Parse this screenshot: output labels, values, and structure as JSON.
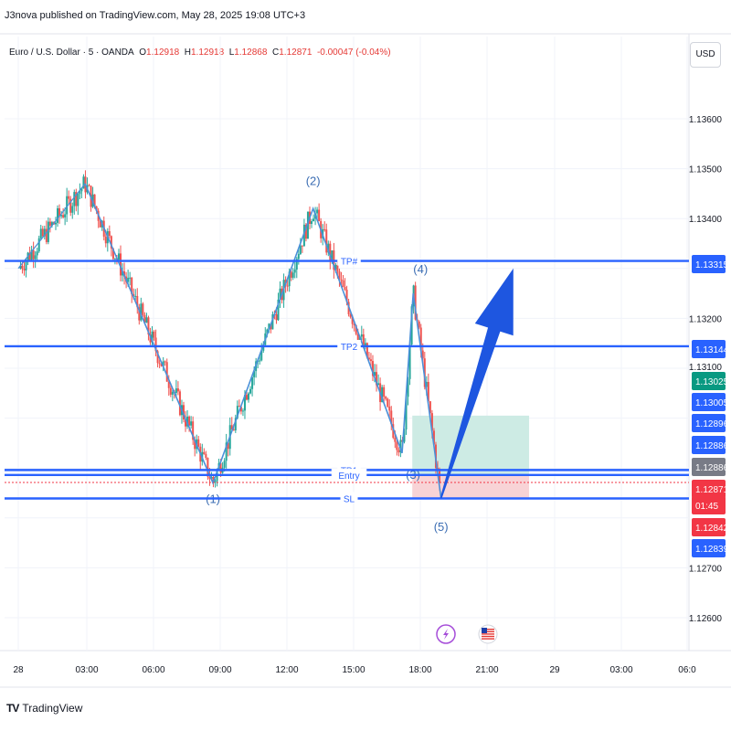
{
  "header": {
    "published_note": "J3nova published on TradingView.com, May 28, 2025 19:08 UTC+3"
  },
  "symbol_bar": {
    "symbol": "Euro / U.S. Dollar · 5 · OANDA",
    "open_label": "O",
    "open": "1.12918",
    "high_label": "H",
    "high": "1.12918",
    "low_label": "L",
    "low": "1.12868",
    "close_label": "C",
    "close": "1.12871",
    "change": "-0.00047 (-0.04%)"
  },
  "currency_button": "USD",
  "colors": {
    "up": "#26a69a",
    "down": "#ef5350",
    "level": "#2962ff",
    "wave": "#4a90d9",
    "arrow": "#1e56e0",
    "target_zone": "#cdebe4",
    "stop_zone": "#f8d3d6"
  },
  "price_axis": {
    "ticks": [
      "1.13600",
      "1.13500",
      "1.13400",
      "1.13200",
      "1.12700",
      "1.12600"
    ],
    "partial_tick": "1.13100",
    "badges": [
      {
        "text": "1.13315",
        "color": "#2962ff"
      },
      {
        "text": "1.13144",
        "color": "#2962ff"
      },
      {
        "text": "1.13025",
        "color": "#089981"
      },
      {
        "text": "1.13005",
        "color": "#2962ff"
      },
      {
        "text": "1.12896",
        "color": "#2962ff"
      },
      {
        "text": "1.12886",
        "color": "#2962ff"
      },
      {
        "text": "1.12886",
        "color": "#787b86"
      },
      {
        "text": "1.12871",
        "color": "#f23645"
      },
      {
        "text": "01:45",
        "color": "#f23645"
      },
      {
        "text": "1.12842",
        "color": "#f23645"
      },
      {
        "text": "1.12839",
        "color": "#2962ff"
      }
    ]
  },
  "time_axis": {
    "labels": [
      "28",
      "03:00",
      "06:00",
      "09:00",
      "12:00",
      "15:00",
      "18:00",
      "21:00",
      "29",
      "03:00",
      "06:0"
    ]
  },
  "levels": [
    {
      "label": "TP#",
      "price": 1.13315
    },
    {
      "label": "TP2",
      "price": 1.13144
    },
    {
      "label": "TP1",
      "price": 1.12896
    },
    {
      "label": "Entry",
      "price": 1.12886
    },
    {
      "label": "SL",
      "price": 1.12839
    }
  ],
  "wave_labels": [
    "(1)",
    "(2)",
    "(3)",
    "(4)",
    "(5)"
  ],
  "event_icons": [
    "lightning-icon",
    "us-flag-icon"
  ],
  "footer": {
    "logo_mark": "TV",
    "brand": "TradingView"
  },
  "chart_data": {
    "type": "candlestick",
    "symbol": "Euro / U.S. Dollar · 5 · OANDA",
    "x_range": [
      "28",
      "06:0"
    ],
    "ylim": [
      1.1255,
      1.1375
    ],
    "grid": true,
    "anchors": [
      {
        "t": "00:00",
        "price": 1.133
      },
      {
        "t": "03:00",
        "price": 1.1347
      },
      {
        "t": "08:45",
        "price": 1.1287
      },
      {
        "t": "13:15",
        "price": 1.1342
      },
      {
        "t": "17:15",
        "price": 1.1293
      },
      {
        "t": "17:45",
        "price": 1.1325
      },
      {
        "t": "19:00",
        "price": 1.1284
      }
    ],
    "trade_zone": {
      "start": "17:45",
      "end": "23:00",
      "target": 1.13005,
      "entry": 1.12886,
      "stop": 1.12839
    },
    "projection": {
      "from": {
        "t": "19:00",
        "price": 1.1284
      },
      "to": {
        "t": "22:15",
        "price": 1.133
      }
    }
  }
}
